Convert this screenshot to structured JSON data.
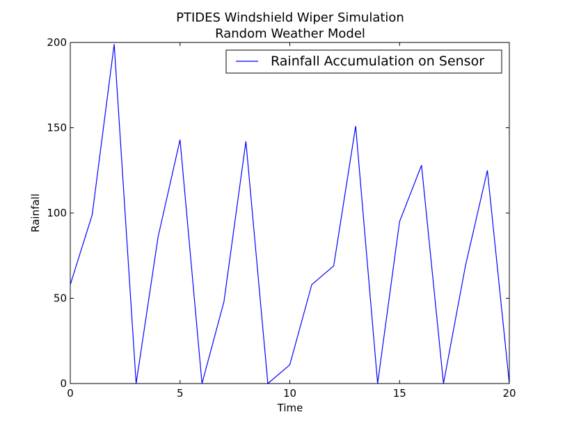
{
  "chart_data": {
    "type": "line",
    "title": "PTIDES Windshield Wiper Simulation",
    "subtitle": "Random Weather Model",
    "xlabel": "Time",
    "ylabel": "Rainfall",
    "xlim": [
      0,
      20
    ],
    "ylim": [
      0,
      200
    ],
    "xticks": [
      "0",
      "5",
      "10",
      "15",
      "20"
    ],
    "yticks": [
      "0",
      "50",
      "100",
      "150",
      "200"
    ],
    "grid": false,
    "legend_position": "top-right",
    "series": [
      {
        "name": "Rainfall Accumulation on Sensor",
        "color": "#0000ff",
        "x": [
          0,
          1,
          2,
          3,
          4,
          5,
          6,
          7,
          8,
          9,
          10,
          11,
          12,
          13,
          14,
          15,
          16,
          17,
          18,
          19,
          20
        ],
        "y": [
          58,
          99,
          199,
          0,
          86,
          143,
          0,
          48,
          142,
          0,
          11,
          58,
          69,
          151,
          0,
          95,
          128,
          0,
          69,
          125,
          0
        ]
      }
    ]
  }
}
